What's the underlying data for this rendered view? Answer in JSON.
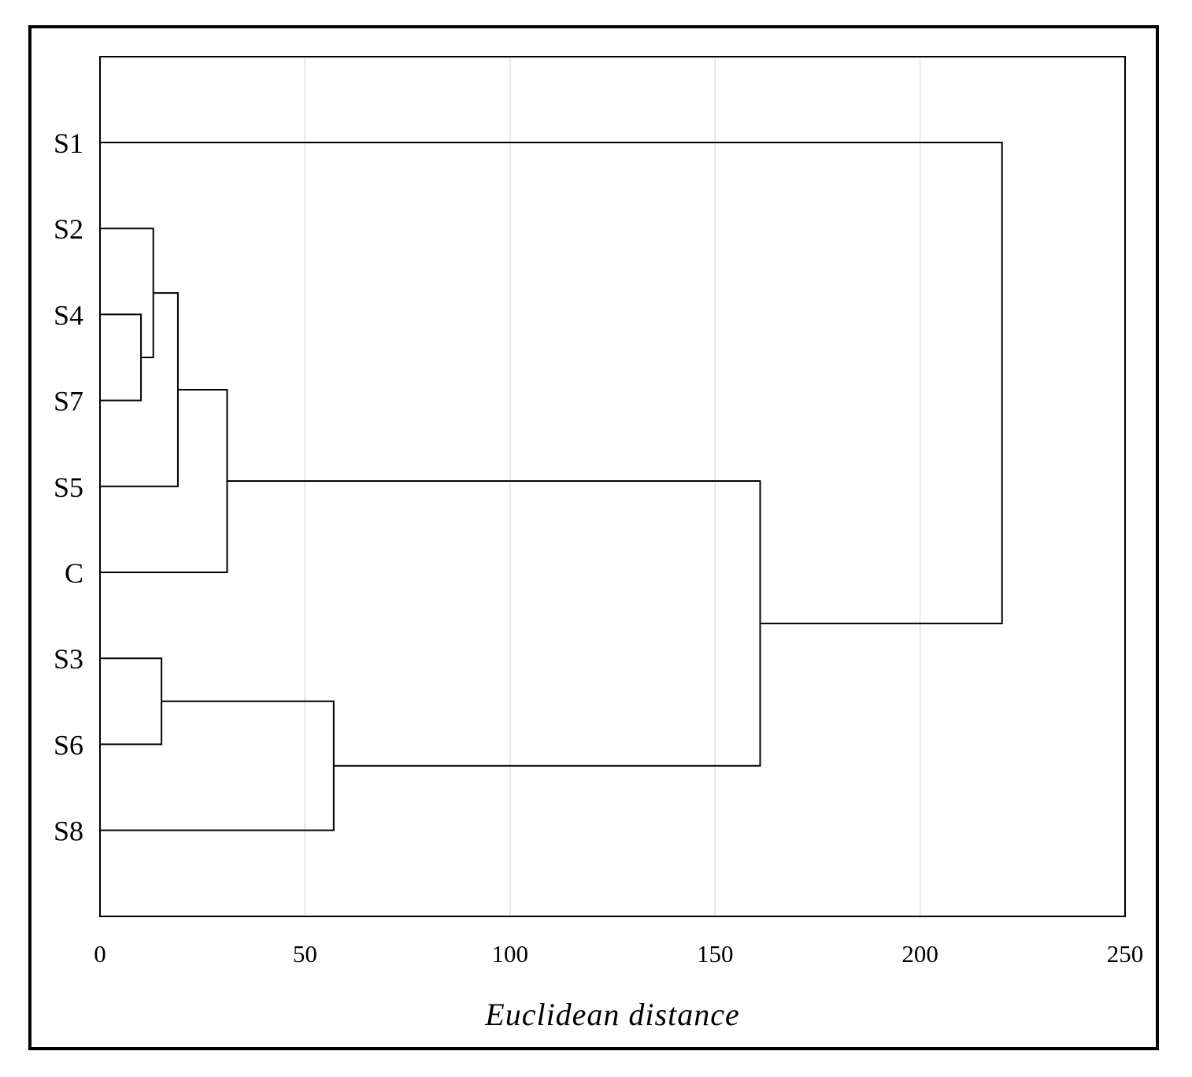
{
  "chart_data": {
    "type": "dendrogram",
    "title": "",
    "xlabel": "Euclidean distance",
    "ylabel": "",
    "xlim": [
      0,
      250
    ],
    "x_ticks": [
      0,
      50,
      100,
      150,
      200,
      250
    ],
    "x_tick_labels": [
      "0",
      "50",
      "100",
      "150",
      "200",
      "250"
    ],
    "grid": "vertical",
    "orientation": "horizontal",
    "leaves": [
      "S1",
      "S2",
      "S4",
      "S7",
      "S5",
      "C",
      "S3",
      "S6",
      "S8"
    ],
    "merges": [
      {
        "id": "m1",
        "children": [
          "S4",
          "S7"
        ],
        "distance": 10
      },
      {
        "id": "m2",
        "children": [
          "S2",
          "m1"
        ],
        "distance": 13
      },
      {
        "id": "m3",
        "children": [
          "S3",
          "S6"
        ],
        "distance": 15
      },
      {
        "id": "m4",
        "children": [
          "m2",
          "S5"
        ],
        "distance": 19
      },
      {
        "id": "m5",
        "children": [
          "m4",
          "C"
        ],
        "distance": 31
      },
      {
        "id": "m6",
        "children": [
          "m3",
          "S8"
        ],
        "distance": 57
      },
      {
        "id": "m7",
        "children": [
          "m5",
          "m6"
        ],
        "distance": 161
      },
      {
        "id": "m8",
        "children": [
          "S1",
          "m7"
        ],
        "distance": 220
      }
    ],
    "colors": {
      "lines": "#000000",
      "grid": "#d9d9d9",
      "frame": "#000000"
    }
  }
}
